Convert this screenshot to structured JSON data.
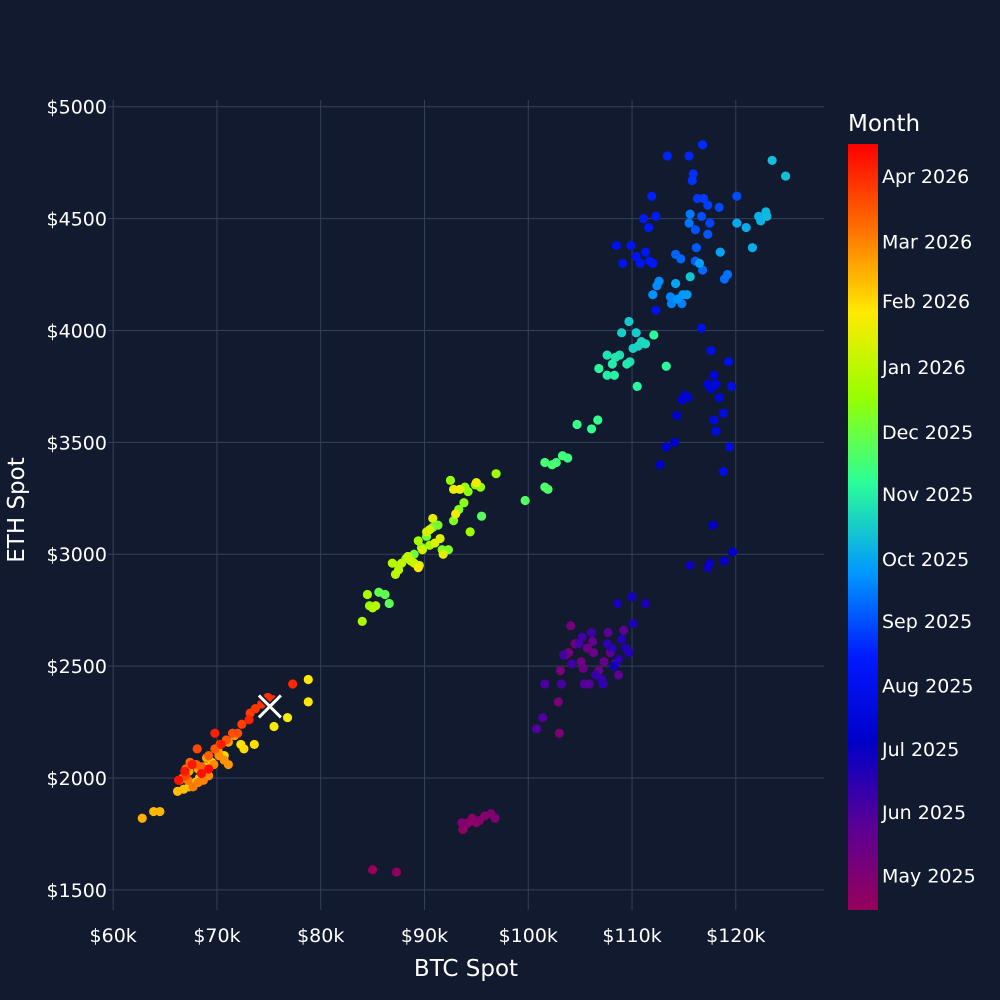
{
  "chart_data": {
    "type": "scatter",
    "xlabel": "BTC Spot",
    "ylabel": "ETH Spot",
    "xlim": [
      59500,
      128500
    ],
    "ylim": [
      1410,
      5030
    ],
    "x_ticks": [
      60000,
      70000,
      80000,
      90000,
      100000,
      110000,
      120000
    ],
    "x_tick_labels": [
      "$60k",
      "$70k",
      "$80k",
      "$90k",
      "$100k",
      "$110k",
      "$120k"
    ],
    "y_ticks": [
      1500,
      2000,
      2500,
      3000,
      3500,
      4000,
      4500,
      5000
    ],
    "y_tick_labels": [
      "$1500",
      "$2000",
      "$2500",
      "$3000",
      "$3500",
      "$4000",
      "$4500",
      "$5000"
    ],
    "grid": true,
    "colorbar": {
      "title": "Month",
      "colorscale": "rainbow (purple → blue → cyan → green → yellow → orange → red)",
      "ticks": [
        {
          "t": 0.045,
          "label": "May 2025"
        },
        {
          "t": 0.128,
          "label": "Jun 2025"
        },
        {
          "t": 0.21,
          "label": "Jul 2025"
        },
        {
          "t": 0.293,
          "label": "Aug 2025"
        },
        {
          "t": 0.377,
          "label": "Sep 2025"
        },
        {
          "t": 0.458,
          "label": "Oct 2025"
        },
        {
          "t": 0.543,
          "label": "Nov 2025"
        },
        {
          "t": 0.624,
          "label": "Dec 2025"
        },
        {
          "t": 0.709,
          "label": "Jan 2026"
        },
        {
          "t": 0.795,
          "label": "Feb 2026"
        },
        {
          "t": 0.873,
          "label": "Mar 2026"
        },
        {
          "t": 0.958,
          "label": "Apr 2026"
        }
      ]
    },
    "points": [
      [
        85000,
        1590,
        0.0
      ],
      [
        87300,
        1580,
        0.01
      ],
      [
        93700,
        1770,
        0.02
      ],
      [
        93900,
        1790,
        0.025
      ],
      [
        94200,
        1800,
        0.03
      ],
      [
        94600,
        1820,
        0.035
      ],
      [
        95000,
        1800,
        0.04
      ],
      [
        95300,
        1810,
        0.045
      ],
      [
        95800,
        1830,
        0.05
      ],
      [
        96400,
        1840,
        0.055
      ],
      [
        96800,
        1820,
        0.06
      ],
      [
        93600,
        1800,
        0.065
      ],
      [
        103000,
        2200,
        0.07
      ],
      [
        102900,
        2340,
        0.075
      ],
      [
        103100,
        2480,
        0.08
      ],
      [
        103600,
        2550,
        0.085
      ],
      [
        104100,
        2680,
        0.09
      ],
      [
        103900,
        2560,
        0.095
      ],
      [
        104500,
        2600,
        0.1
      ],
      [
        105100,
        2520,
        0.105
      ],
      [
        105700,
        2580,
        0.11
      ],
      [
        105300,
        2490,
        0.115
      ],
      [
        106300,
        2560,
        0.12
      ],
      [
        106800,
        2480,
        0.125
      ],
      [
        107300,
        2520,
        0.13
      ],
      [
        106200,
        2610,
        0.135
      ],
      [
        107900,
        2560,
        0.14
      ],
      [
        108400,
        2510,
        0.145
      ],
      [
        108700,
        2460,
        0.15
      ],
      [
        109200,
        2660,
        0.155
      ],
      [
        107700,
        2650,
        0.16
      ],
      [
        105900,
        2420,
        0.165
      ],
      [
        105400,
        2420,
        0.17
      ],
      [
        100800,
        2220,
        0.175
      ],
      [
        101400,
        2270,
        0.18
      ],
      [
        101600,
        2420,
        0.185
      ],
      [
        103200,
        2420,
        0.19
      ],
      [
        103400,
        2550,
        0.195
      ],
      [
        104900,
        2600,
        0.2
      ],
      [
        105200,
        2630,
        0.205
      ],
      [
        104200,
        2510,
        0.21
      ],
      [
        106100,
        2650,
        0.215
      ],
      [
        106500,
        2460,
        0.22
      ],
      [
        107100,
        2440,
        0.225
      ],
      [
        107200,
        2420,
        0.23
      ],
      [
        107600,
        2600,
        0.235
      ],
      [
        108100,
        2580,
        0.24
      ],
      [
        108700,
        2530,
        0.245
      ],
      [
        109000,
        2620,
        0.25
      ],
      [
        109400,
        2580,
        0.255
      ],
      [
        109700,
        2560,
        0.26
      ],
      [
        110100,
        2690,
        0.265
      ],
      [
        111300,
        2780,
        0.27
      ],
      [
        108600,
        2780,
        0.275
      ],
      [
        110000,
        2810,
        0.28
      ],
      [
        108300,
        2500,
        0.285
      ],
      [
        115600,
        2950,
        0.29
      ],
      [
        117300,
        2940,
        0.295
      ],
      [
        117500,
        2960,
        0.3
      ],
      [
        118900,
        2970,
        0.305
      ],
      [
        119700,
        3010,
        0.31
      ],
      [
        117800,
        3130,
        0.315
      ],
      [
        112700,
        3400,
        0.32
      ],
      [
        113300,
        3480,
        0.325
      ],
      [
        114100,
        3500,
        0.33
      ],
      [
        114300,
        3620,
        0.335
      ],
      [
        114800,
        3690,
        0.34
      ],
      [
        115100,
        3710,
        0.345
      ],
      [
        115400,
        3700,
        0.35
      ],
      [
        117300,
        3760,
        0.355
      ],
      [
        117600,
        3740,
        0.36
      ],
      [
        117900,
        3800,
        0.365
      ],
      [
        118100,
        3760,
        0.37
      ],
      [
        118400,
        3700,
        0.375
      ],
      [
        117900,
        3600,
        0.38
      ],
      [
        118100,
        3550,
        0.385
      ],
      [
        118800,
        3630,
        0.39
      ],
      [
        119400,
        3480,
        0.395
      ],
      [
        118800,
        3370,
        0.4
      ],
      [
        119600,
        3750,
        0.405
      ],
      [
        119300,
        3860,
        0.41
      ],
      [
        117600,
        3910,
        0.415
      ],
      [
        116700,
        4010,
        0.42
      ],
      [
        112300,
        4090,
        0.425
      ],
      [
        108500,
        4380,
        0.43
      ],
      [
        109100,
        4300,
        0.435
      ],
      [
        109900,
        4380,
        0.44
      ],
      [
        110400,
        4330,
        0.445
      ],
      [
        110800,
        4300,
        0.45
      ],
      [
        111300,
        4350,
        0.455
      ],
      [
        111700,
        4310,
        0.46
      ],
      [
        112000,
        4300,
        0.465
      ],
      [
        111600,
        4460,
        0.47
      ],
      [
        112300,
        4510,
        0.475
      ],
      [
        111100,
        4500,
        0.48
      ],
      [
        111900,
        4600,
        0.485
      ],
      [
        113400,
        4780,
        0.49
      ],
      [
        115500,
        4780,
        0.495
      ],
      [
        116800,
        4830,
        0.5
      ],
      [
        115900,
        4700,
        0.505
      ],
      [
        115800,
        4670,
        0.51
      ],
      [
        116300,
        4590,
        0.515
      ],
      [
        116900,
        4590,
        0.52
      ],
      [
        117300,
        4560,
        0.525
      ],
      [
        117500,
        4480,
        0.53
      ],
      [
        118400,
        4550,
        0.535
      ],
      [
        120100,
        4600,
        0.54
      ],
      [
        116700,
        4510,
        0.545
      ],
      [
        116100,
        4450,
        0.55
      ],
      [
        117300,
        4430,
        0.555
      ],
      [
        116200,
        4370,
        0.56
      ],
      [
        116100,
        4310,
        0.565
      ],
      [
        114200,
        4340,
        0.57
      ],
      [
        114700,
        4320,
        0.575
      ],
      [
        116800,
        4270,
        0.58
      ],
      [
        118900,
        4230,
        0.585
      ],
      [
        119200,
        4250,
        0.59
      ],
      [
        115500,
        4480,
        0.595
      ],
      [
        115600,
        4520,
        0.6
      ],
      [
        114800,
        4120,
        0.605
      ],
      [
        113800,
        4120,
        0.61
      ],
      [
        113700,
        4150,
        0.615
      ],
      [
        112400,
        4200,
        0.62
      ],
      [
        112600,
        4220,
        0.625
      ],
      [
        112000,
        4160,
        0.63
      ],
      [
        114400,
        4140,
        0.635
      ],
      [
        114900,
        4160,
        0.64
      ],
      [
        115300,
        4160,
        0.645
      ],
      [
        116500,
        4300,
        0.65
      ],
      [
        118500,
        4350,
        0.655
      ],
      [
        114200,
        4210,
        0.66
      ],
      [
        120100,
        4480,
        0.665
      ],
      [
        121000,
        4460,
        0.67
      ],
      [
        121600,
        4370,
        0.675
      ],
      [
        122200,
        4510,
        0.68
      ],
      [
        122400,
        4490,
        0.685
      ],
      [
        122900,
        4530,
        0.69
      ],
      [
        123000,
        4510,
        0.695
      ],
      [
        123500,
        4760,
        0.7
      ],
      [
        124800,
        4690,
        0.705
      ],
      [
        115600,
        4240,
        0.71
      ],
      [
        109700,
        4040,
        0.72
      ],
      [
        110400,
        3990,
        0.725
      ],
      [
        109000,
        3990,
        0.73
      ],
      [
        110100,
        3920,
        0.735
      ],
      [
        110600,
        3930,
        0.74
      ],
      [
        110900,
        3950,
        0.745
      ],
      [
        111300,
        3940,
        0.75
      ],
      [
        109800,
        3860,
        0.755
      ],
      [
        108800,
        3890,
        0.76
      ],
      [
        107600,
        3890,
        0.765
      ],
      [
        108400,
        3880,
        0.77
      ],
      [
        109500,
        3850,
        0.775
      ],
      [
        108100,
        3850,
        0.78
      ],
      [
        107600,
        3800,
        0.785
      ],
      [
        108300,
        3800,
        0.79
      ],
      [
        106800,
        3830,
        0.795
      ],
      [
        110500,
        3750,
        0.8
      ],
      [
        112100,
        3980,
        0.805
      ],
      [
        113300,
        3840,
        0.81
      ],
      [
        106100,
        3560,
        0.82
      ],
      [
        106700,
        3600,
        0.825
      ],
      [
        104700,
        3580,
        0.83
      ],
      [
        103800,
        3430,
        0.835
      ],
      [
        103300,
        3440,
        0.84
      ],
      [
        102700,
        3410,
        0.845
      ],
      [
        101600,
        3410,
        0.85
      ],
      [
        102300,
        3400,
        0.855
      ],
      [
        101600,
        3300,
        0.86
      ],
      [
        101900,
        3290,
        0.865
      ],
      [
        99700,
        3240,
        0.87
      ],
      [
        95500,
        3170,
        0.875
      ],
      [
        86600,
        2780,
        0.88
      ],
      [
        86200,
        2820,
        0.885
      ],
      [
        85600,
        2830,
        0.89
      ],
      [
        87500,
        2950,
        0.895
      ],
      [
        88200,
        2980,
        0.9
      ],
      [
        89000,
        3000,
        0.905
      ],
      [
        89700,
        3030,
        0.91
      ],
      [
        90200,
        3080,
        0.915
      ],
      [
        90800,
        3120,
        0.92
      ],
      [
        91300,
        3130,
        0.925
      ],
      [
        91700,
        3020,
        0.93
      ],
      [
        92300,
        3020,
        0.935
      ],
      [
        92800,
        3150,
        0.94
      ],
      [
        93300,
        3200,
        0.945
      ],
      [
        93800,
        3230,
        0.95
      ],
      [
        94200,
        3280,
        0.955
      ],
      [
        94900,
        3310,
        0.96
      ],
      [
        95400,
        3300,
        0.965
      ],
      [
        92500,
        3330,
        0.97
      ],
      [
        93900,
        3300,
        0.975
      ],
      [
        96900,
        3360,
        0.98
      ],
      [
        94400,
        3100,
        0.985
      ],
      [
        90500,
        3040,
        0.99
      ],
      [
        89400,
        3060,
        0.995
      ],
      [
        84700,
        2770,
        0.96
      ],
      [
        84000,
        2700,
        1.0
      ],
      [
        84500,
        2820,
        1.005
      ],
      [
        85000,
        2760,
        1.01
      ],
      [
        85300,
        2770,
        1.015
      ],
      [
        86900,
        2960,
        1.02
      ],
      [
        87200,
        2910,
        1.025
      ],
      [
        87500,
        2930,
        1.03
      ],
      [
        87800,
        2960,
        1.035
      ],
      [
        88400,
        2990,
        1.04
      ],
      [
        88700,
        2970,
        1.045
      ],
      [
        89000,
        2960,
        1.05
      ],
      [
        89500,
        2950,
        1.055
      ],
      [
        89800,
        3020,
        1.06
      ],
      [
        90200,
        3100,
        1.065
      ],
      [
        90500,
        3110,
        1.07
      ],
      [
        91000,
        3050,
        1.075
      ],
      [
        91500,
        3070,
        1.08
      ],
      [
        90800,
        3160,
        1.085
      ],
      [
        91800,
        3000,
        1.09
      ],
      [
        92800,
        3290,
        1.095
      ],
      [
        93400,
        3290,
        1.1
      ],
      [
        95000,
        3320,
        1.105
      ],
      [
        93000,
        3180,
        1.11
      ],
      [
        89400,
        2940,
        1.115
      ],
      [
        75500,
        2230,
        1.12
      ],
      [
        76800,
        2270,
        1.125
      ],
      [
        78800,
        2440,
        1.13
      ],
      [
        78800,
        2340,
        1.135
      ],
      [
        72300,
        2150,
        1.14
      ],
      [
        73600,
        2150,
        1.145
      ],
      [
        72600,
        2130,
        1.15
      ],
      [
        70700,
        2100,
        1.155
      ],
      [
        69500,
        2070,
        1.16
      ],
      [
        68800,
        2050,
        1.165
      ],
      [
        68300,
        2000,
        1.17
      ],
      [
        67900,
        1980,
        1.175
      ],
      [
        67300,
        1960,
        1.18
      ],
      [
        66800,
        1950,
        1.185
      ],
      [
        66200,
        1940,
        1.19
      ],
      [
        63900,
        1850,
        1.195
      ],
      [
        64500,
        1850,
        1.2
      ],
      [
        62800,
        1820,
        1.205
      ],
      [
        67300,
        2030,
        1.21
      ],
      [
        68200,
        2040,
        1.215
      ],
      [
        69000,
        2090,
        1.22
      ],
      [
        70100,
        2120,
        1.225
      ],
      [
        71100,
        2160,
        1.23
      ],
      [
        71700,
        2190,
        1.235
      ],
      [
        71100,
        2060,
        1.24
      ],
      [
        70700,
        2080,
        1.245
      ],
      [
        70200,
        2100,
        1.25
      ],
      [
        69700,
        2060,
        1.255
      ],
      [
        69200,
        2010,
        1.26
      ],
      [
        68700,
        1990,
        1.265
      ],
      [
        68200,
        1980,
        1.27
      ],
      [
        67700,
        1960,
        1.275
      ],
      [
        67200,
        1990,
        1.28
      ],
      [
        66700,
        2000,
        1.285
      ],
      [
        66400,
        1990,
        1.29
      ],
      [
        67000,
        2040,
        1.295
      ],
      [
        67400,
        2070,
        1.3
      ],
      [
        68000,
        2060,
        1.305
      ],
      [
        68500,
        2050,
        1.31
      ],
      [
        69200,
        2100,
        1.315
      ],
      [
        69800,
        2130,
        1.32
      ],
      [
        70300,
        2150,
        1.325
      ],
      [
        70900,
        2170,
        1.33
      ],
      [
        71500,
        2200,
        1.335
      ],
      [
        72000,
        2200,
        1.34
      ],
      [
        68100,
        2130,
        1.345
      ],
      [
        67000,
        2010,
        1.35
      ],
      [
        72400,
        2240,
        1.36
      ],
      [
        73200,
        2290,
        1.365
      ],
      [
        73700,
        2310,
        1.37
      ],
      [
        74300,
        2330,
        1.375
      ],
      [
        74900,
        2360,
        1.38
      ],
      [
        75400,
        2350,
        1.385
      ],
      [
        75200,
        2330,
        1.39
      ],
      [
        77300,
        2420,
        1.395
      ],
      [
        73100,
        2260,
        1.4
      ],
      [
        69800,
        2200,
        1.405
      ],
      [
        70400,
        2150,
        1.41
      ],
      [
        67600,
        2060,
        1.415
      ],
      [
        66900,
        2030,
        1.42
      ],
      [
        66300,
        1990,
        1.425
      ],
      [
        68500,
        2020,
        1.43
      ],
      [
        69200,
        2040,
        1.435
      ]
    ],
    "marker_last": {
      "x": 75100,
      "y": 2320
    }
  }
}
